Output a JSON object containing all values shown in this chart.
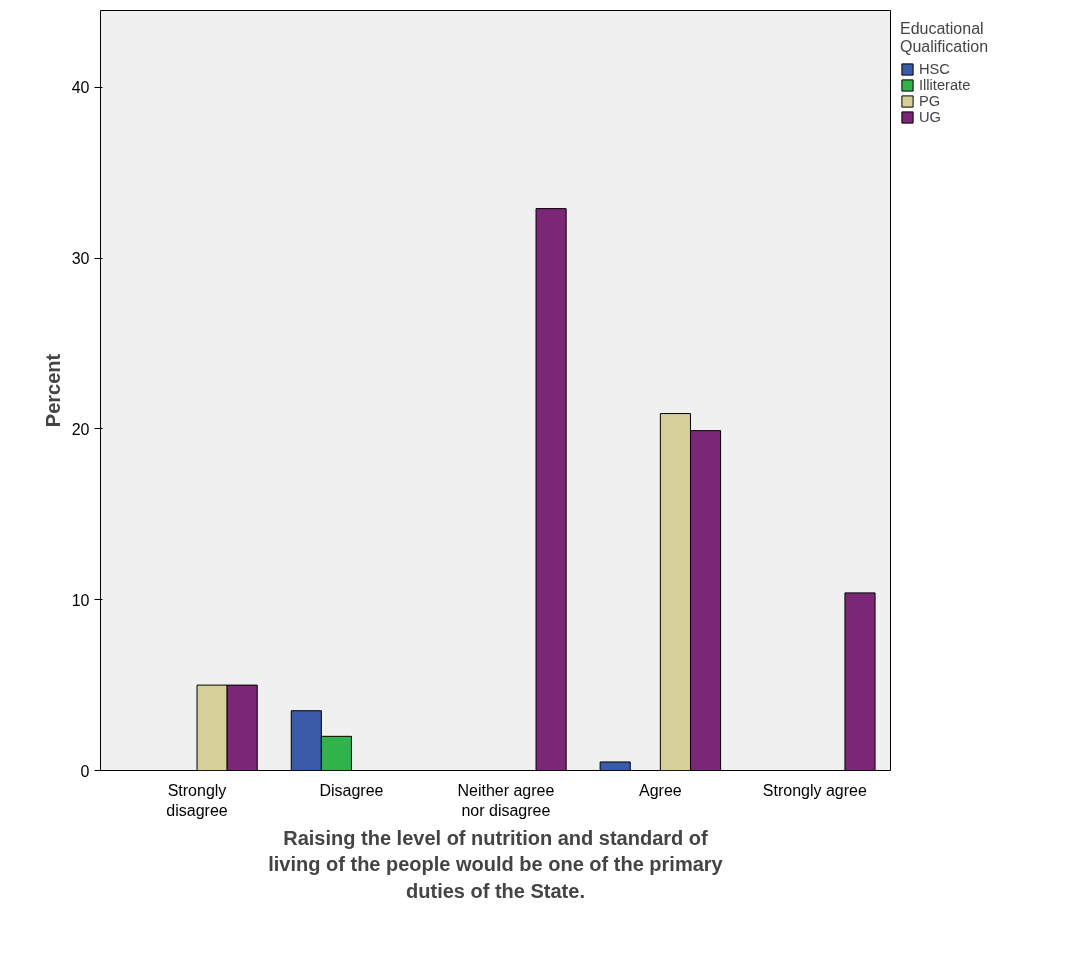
{
  "chart_data": {
    "type": "bar",
    "xlabel": "Raising the level of nutrition and standard of living of the people would be one of the primary duties of the State.",
    "ylabel": "Percent",
    "legend_title": "Educational Qualification",
    "categories": [
      "Strongly disagree",
      "Disagree",
      "Neither agree nor disagree",
      "Agree",
      "Strongly agree"
    ],
    "series": [
      {
        "name": "HSC",
        "color": "#3a5ba8",
        "values": [
          null,
          3.5,
          null,
          0.5,
          null
        ]
      },
      {
        "name": "Illiterate",
        "color": "#2fb34a",
        "values": [
          null,
          2.0,
          null,
          null,
          null
        ]
      },
      {
        "name": "PG",
        "color": "#d5d09a",
        "values": [
          5.0,
          null,
          null,
          20.9,
          null
        ]
      },
      {
        "name": "UG",
        "color": "#7b2776",
        "values": [
          5.0,
          null,
          32.9,
          19.9,
          10.4
        ]
      }
    ],
    "ylim": [
      0,
      44.5
    ],
    "yticks": [
      0,
      10,
      20,
      30,
      40
    ],
    "grid": false,
    "legend": "top right"
  }
}
